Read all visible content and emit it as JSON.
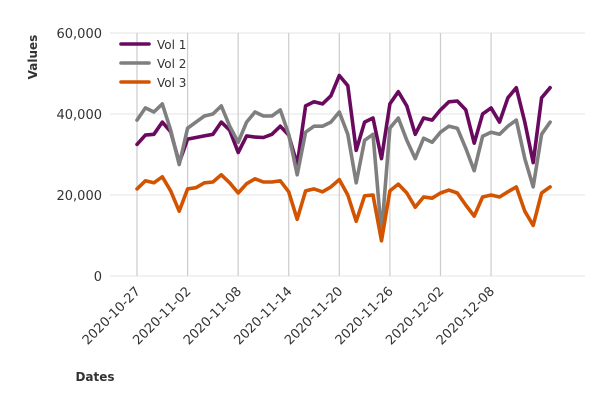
{
  "chart_data": {
    "type": "line",
    "xlabel": "Dates",
    "ylabel": "Values",
    "ylim": [
      0,
      60000
    ],
    "y_ticks": [
      0,
      20000,
      40000,
      60000
    ],
    "y_tick_labels": [
      "0",
      "20,000",
      "40,000",
      "60,000"
    ],
    "x_tick_labels": [
      "2020-10-27",
      "2020-11-02",
      "2020-11-08",
      "2020-11-14",
      "2020-11-20",
      "2020-11-26",
      "2020-12-02",
      "2020-12-08"
    ],
    "grid": "vertical",
    "legend_position": "top-left",
    "x": [
      "2020-10-27",
      "2020-10-28",
      "2020-10-29",
      "2020-10-30",
      "2020-10-31",
      "2020-11-01",
      "2020-11-02",
      "2020-11-03",
      "2020-11-04",
      "2020-11-05",
      "2020-11-06",
      "2020-11-07",
      "2020-11-08",
      "2020-11-09",
      "2020-11-10",
      "2020-11-11",
      "2020-11-12",
      "2020-11-13",
      "2020-11-14",
      "2020-11-15",
      "2020-11-16",
      "2020-11-17",
      "2020-11-18",
      "2020-11-19",
      "2020-11-20",
      "2020-11-21",
      "2020-11-22",
      "2020-11-23",
      "2020-11-24",
      "2020-11-25",
      "2020-11-26",
      "2020-11-27",
      "2020-11-28",
      "2020-11-29",
      "2020-11-30",
      "2020-12-01",
      "2020-12-02",
      "2020-12-03",
      "2020-12-04",
      "2020-12-05",
      "2020-12-06",
      "2020-12-07",
      "2020-12-08",
      "2020-12-09",
      "2020-12-10",
      "2020-12-11",
      "2020-12-12",
      "2020-12-13",
      "2020-12-14",
      "2020-12-15"
    ],
    "series": [
      {
        "name": "Vol 1",
        "color": "#6a0a5f",
        "values": [
          32500,
          34800,
          35000,
          38000,
          35600,
          28000,
          33800,
          34200,
          34600,
          35000,
          38000,
          36000,
          30500,
          34600,
          34300,
          34200,
          35000,
          37000,
          34800,
          27500,
          42000,
          43000,
          42500,
          44500,
          49500,
          47000,
          31000,
          38000,
          39000,
          29000,
          42500,
          45500,
          42000,
          35000,
          39000,
          38500,
          41000,
          43000,
          43200,
          41000,
          32800,
          40000,
          41500,
          38000,
          44000,
          46500,
          38000,
          28000,
          44000,
          46500
        ]
      },
      {
        "name": "Vol 2",
        "color": "#7f7f7f",
        "values": [
          38500,
          41500,
          40500,
          42500,
          36000,
          27500,
          36500,
          38000,
          39500,
          40000,
          42000,
          37000,
          33000,
          38000,
          40500,
          39500,
          39500,
          41000,
          35000,
          25000,
          35500,
          37000,
          37000,
          38000,
          40500,
          35000,
          23000,
          33500,
          35000,
          10500,
          36500,
          39000,
          33500,
          29000,
          34000,
          33000,
          35500,
          37000,
          36500,
          31500,
          26000,
          34500,
          35500,
          35000,
          37000,
          38500,
          29000,
          22000,
          35000,
          38000
        ]
      },
      {
        "name": "Vol 3",
        "color": "#d35400",
        "values": [
          21500,
          23500,
          23000,
          24500,
          21000,
          16000,
          21500,
          21800,
          23000,
          23200,
          25000,
          23000,
          20500,
          22800,
          24000,
          23200,
          23200,
          23500,
          20800,
          14000,
          21000,
          21500,
          20800,
          22000,
          23800,
          20000,
          13500,
          19800,
          20000,
          8700,
          21000,
          22700,
          20500,
          17000,
          19500,
          19200,
          20500,
          21200,
          20500,
          17500,
          14800,
          19500,
          20000,
          19500,
          20800,
          22000,
          16000,
          12500,
          20500,
          22000
        ]
      }
    ]
  }
}
